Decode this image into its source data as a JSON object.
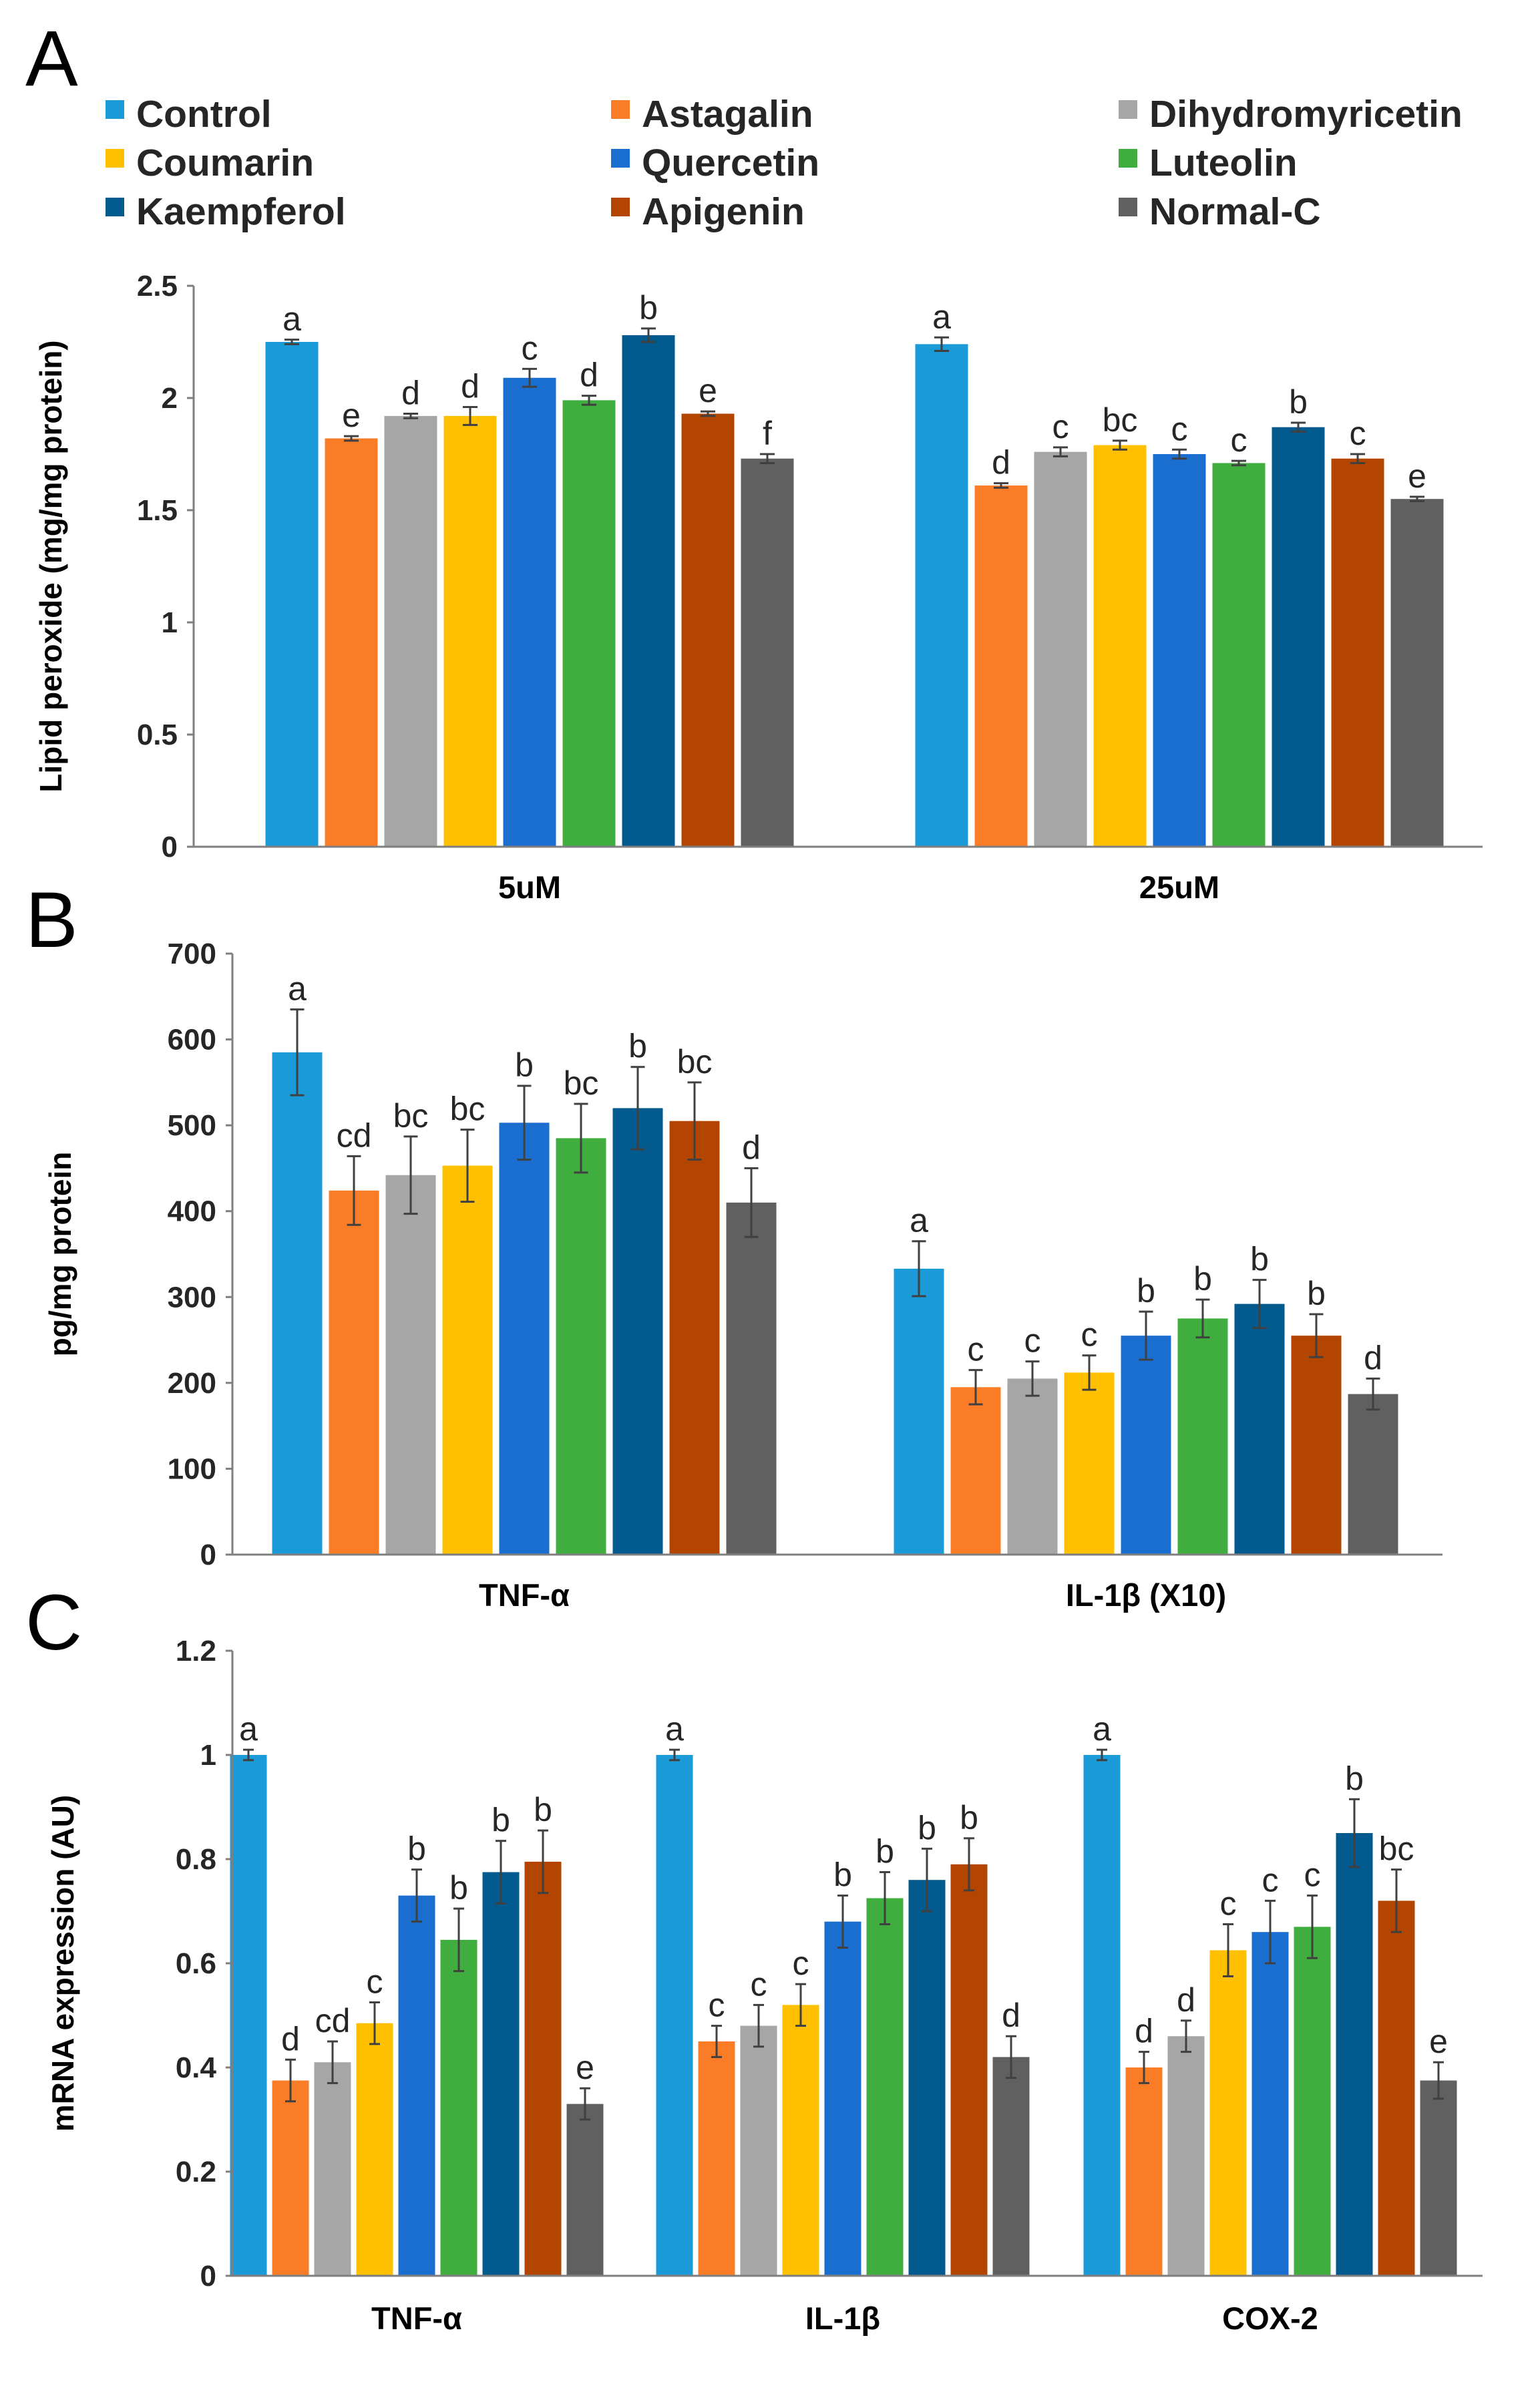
{
  "chart_data": [
    {
      "panel": "A",
      "type": "bar",
      "ylabel": "Lipid peroxide (mg/mg protein)",
      "ylim": [
        0,
        2.5
      ],
      "yticks": [
        0,
        0.5,
        1,
        1.5,
        2,
        2.5
      ],
      "ytick_labels": [
        "0",
        "0.5",
        "1",
        "1.5",
        "2",
        "2.5"
      ],
      "categories": [
        "5uM",
        "25uM"
      ],
      "series": [
        {
          "name": "Control",
          "values": [
            2.25,
            2.24
          ],
          "errors": [
            0.01,
            0.03
          ],
          "labels": [
            "a",
            "a"
          ]
        },
        {
          "name": "Astagalin",
          "values": [
            1.82,
            1.61
          ],
          "errors": [
            0.01,
            0.01
          ],
          "labels": [
            "e",
            "d"
          ]
        },
        {
          "name": "Dihydromyricetin",
          "values": [
            1.92,
            1.76
          ],
          "errors": [
            0.01,
            0.02
          ],
          "labels": [
            "d",
            "c"
          ]
        },
        {
          "name": "Coumarin",
          "values": [
            1.92,
            1.79
          ],
          "errors": [
            0.04,
            0.02
          ],
          "labels": [
            "d",
            "bc"
          ]
        },
        {
          "name": "Quercetin",
          "values": [
            2.09,
            1.75
          ],
          "errors": [
            0.04,
            0.02
          ],
          "labels": [
            "c",
            "c"
          ]
        },
        {
          "name": "Luteolin",
          "values": [
            1.99,
            1.71
          ],
          "errors": [
            0.02,
            0.01
          ],
          "labels": [
            "d",
            "c"
          ]
        },
        {
          "name": "Kaempferol",
          "values": [
            2.28,
            1.87
          ],
          "errors": [
            0.03,
            0.02
          ],
          "labels": [
            "b",
            "b"
          ]
        },
        {
          "name": "Apigenin",
          "values": [
            1.93,
            1.73
          ],
          "errors": [
            0.01,
            0.02
          ],
          "labels": [
            "e",
            "c"
          ]
        },
        {
          "name": "Normal-C",
          "values": [
            1.73,
            1.55
          ],
          "errors": [
            0.02,
            0.01
          ],
          "labels": [
            "f",
            "e"
          ]
        }
      ]
    },
    {
      "panel": "B",
      "type": "bar",
      "ylabel": "pg/mg protein",
      "ylim": [
        0,
        700
      ],
      "yticks": [
        0,
        100,
        200,
        300,
        400,
        500,
        600,
        700
      ],
      "ytick_labels": [
        "0",
        "100",
        "200",
        "300",
        "400",
        "500",
        "600",
        "700"
      ],
      "categories": [
        "TNF-α",
        "IL-1β (X10)"
      ],
      "series": [
        {
          "name": "Control",
          "values": [
            585,
            333
          ],
          "errors": [
            50,
            32
          ],
          "labels": [
            "a",
            "a"
          ]
        },
        {
          "name": "Astagalin",
          "values": [
            424,
            195
          ],
          "errors": [
            40,
            20
          ],
          "labels": [
            "cd",
            "c"
          ]
        },
        {
          "name": "Dihydromyricetin",
          "values": [
            442,
            205
          ],
          "errors": [
            45,
            20
          ],
          "labels": [
            "bc",
            "c"
          ]
        },
        {
          "name": "Coumarin",
          "values": [
            453,
            212
          ],
          "errors": [
            42,
            20
          ],
          "labels": [
            "bc",
            "c"
          ]
        },
        {
          "name": "Quercetin",
          "values": [
            503,
            255
          ],
          "errors": [
            43,
            28
          ],
          "labels": [
            "b",
            "b"
          ]
        },
        {
          "name": "Luteolin",
          "values": [
            485,
            275
          ],
          "errors": [
            40,
            22
          ],
          "labels": [
            "bc",
            "b"
          ]
        },
        {
          "name": "Kaempferol",
          "values": [
            520,
            292
          ],
          "errors": [
            48,
            28
          ],
          "labels": [
            "b",
            "b"
          ]
        },
        {
          "name": "Apigenin",
          "values": [
            505,
            255
          ],
          "errors": [
            45,
            25
          ],
          "labels": [
            "bc",
            "b"
          ]
        },
        {
          "name": "Normal-C",
          "values": [
            410,
            187
          ],
          "errors": [
            40,
            18
          ],
          "labels": [
            "d",
            "d"
          ]
        }
      ]
    },
    {
      "panel": "C",
      "type": "bar",
      "ylabel": "mRNA expression (AU)",
      "ylim": [
        0,
        1.2
      ],
      "yticks": [
        0,
        0.2,
        0.4,
        0.6,
        0.8,
        1,
        1.2
      ],
      "ytick_labels": [
        "0",
        "0.2",
        "0.4",
        "0.6",
        "0.8",
        "1",
        "1.2"
      ],
      "categories": [
        "TNF-α",
        "IL-1β",
        "COX-2"
      ],
      "series": [
        {
          "name": "Control",
          "values": [
            1.0,
            1.0,
            1.0
          ],
          "errors": [
            0.01,
            0.01,
            0.01
          ],
          "labels": [
            "a",
            "a",
            "a"
          ]
        },
        {
          "name": "Astagalin",
          "values": [
            0.375,
            0.45,
            0.4
          ],
          "errors": [
            0.04,
            0.03,
            0.03
          ],
          "labels": [
            "d",
            "c",
            "d"
          ]
        },
        {
          "name": "Dihydromyricetin",
          "values": [
            0.41,
            0.48,
            0.46
          ],
          "errors": [
            0.04,
            0.04,
            0.03
          ],
          "labels": [
            "cd",
            "c",
            "d"
          ]
        },
        {
          "name": "Coumarin",
          "values": [
            0.485,
            0.52,
            0.625
          ],
          "errors": [
            0.04,
            0.04,
            0.05
          ],
          "labels": [
            "c",
            "c",
            "c"
          ]
        },
        {
          "name": "Quercetin",
          "values": [
            0.73,
            0.68,
            0.66
          ],
          "errors": [
            0.05,
            0.05,
            0.06
          ],
          "labels": [
            "b",
            "b",
            "c"
          ]
        },
        {
          "name": "Luteolin",
          "values": [
            0.645,
            0.725,
            0.67
          ],
          "errors": [
            0.06,
            0.05,
            0.06
          ],
          "labels": [
            "b",
            "b",
            "c"
          ]
        },
        {
          "name": "Kaempferol",
          "values": [
            0.775,
            0.76,
            0.85
          ],
          "errors": [
            0.06,
            0.06,
            0.065
          ],
          "labels": [
            "b",
            "b",
            "b"
          ]
        },
        {
          "name": "Apigenin",
          "values": [
            0.795,
            0.79,
            0.72
          ],
          "errors": [
            0.06,
            0.05,
            0.06
          ],
          "labels": [
            "b",
            "b",
            "bc"
          ]
        },
        {
          "name": "Normal-C",
          "values": [
            0.33,
            0.42,
            0.375
          ],
          "errors": [
            0.03,
            0.04,
            0.035
          ],
          "labels": [
            "e",
            "d",
            "e"
          ]
        }
      ]
    }
  ],
  "panel_labels": [
    "A",
    "B",
    "C"
  ],
  "legend": [
    {
      "name": "Control",
      "color": "#1a9ad6"
    },
    {
      "name": "Astagalin",
      "color": "#fb7c26"
    },
    {
      "name": "Dihydromyricetin",
      "color": "#a6a6a6"
    },
    {
      "name": "Coumarin",
      "color": "#ffc000"
    },
    {
      "name": "Quercetin",
      "color": "#1a6ed0"
    },
    {
      "name": "Luteolin",
      "color": "#3fae3f"
    },
    {
      "name": "Kaempferol",
      "color": "#035a8e"
    },
    {
      "name": "Apigenin",
      "color": "#b34500"
    },
    {
      "name": "Normal-C",
      "color": "#606060"
    }
  ]
}
